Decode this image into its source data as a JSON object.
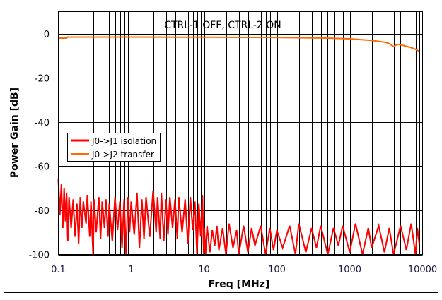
{
  "chart_data": {
    "type": "line",
    "title": "CTRL-1 OFF, CTRL-2 ON",
    "xlabel": "Freq [MHz]",
    "ylabel": "Power Gain [dB]",
    "xscale": "log",
    "xlim": [
      0.1,
      10000
    ],
    "ylim": [
      -100,
      10
    ],
    "xticks": [
      "0.1",
      "1",
      "10",
      "100",
      "1000",
      "10000"
    ],
    "xtick_values": [
      0.1,
      1,
      10,
      100,
      1000,
      10000
    ],
    "yticks": [
      "0",
      "-20",
      "-40",
      "-60",
      "-80",
      "-100"
    ],
    "ytick_values": [
      0,
      -20,
      -40,
      -60,
      -80,
      -100
    ],
    "grid": true,
    "legend_position": "center-left",
    "series": [
      {
        "name": "J0->J1 isolation",
        "color": "#ff0000",
        "x": [
          0.1,
          0.105,
          0.11,
          0.115,
          0.12,
          0.125,
          0.13,
          0.135,
          0.14,
          0.15,
          0.16,
          0.17,
          0.18,
          0.19,
          0.2,
          0.21,
          0.22,
          0.24,
          0.25,
          0.27,
          0.28,
          0.3,
          0.31,
          0.33,
          0.36,
          0.38,
          0.4,
          0.43,
          0.45,
          0.48,
          0.5,
          0.55,
          0.6,
          0.65,
          0.7,
          0.75,
          0.8,
          0.85,
          0.9,
          0.95,
          1,
          1.1,
          1.2,
          1.3,
          1.4,
          1.5,
          1.6,
          1.8,
          2,
          2.2,
          2.3,
          2.5,
          2.6,
          2.8,
          3,
          3.2,
          3.4,
          3.7,
          4,
          4.3,
          4.5,
          5,
          5.5,
          6,
          6.5,
          7,
          7.5,
          8,
          8.5,
          9,
          9.5,
          9.9,
          10.1,
          10.5,
          11,
          12,
          13,
          14,
          15,
          16,
          18,
          20,
          22,
          25,
          28,
          30,
          35,
          40,
          45,
          50,
          60,
          70,
          80,
          90,
          100,
          120,
          150,
          180,
          200,
          250,
          300,
          350,
          400,
          500,
          600,
          700,
          800,
          1000,
          1200,
          1500,
          1800,
          2000,
          2500,
          3000,
          3500,
          4000,
          5000,
          6000,
          7000,
          8000,
          8500,
          9000
        ],
        "y": [
          -66,
          -82,
          -68,
          -88,
          -70,
          -85,
          -72,
          -94,
          -74,
          -88,
          -75,
          -92,
          -77,
          -95,
          -74,
          -88,
          -76,
          -86,
          -73,
          -92,
          -76,
          -100,
          -75,
          -90,
          -74,
          -93,
          -76,
          -88,
          -75,
          -92,
          -77,
          -94,
          -74,
          -89,
          -76,
          -97,
          -75,
          -100,
          -74,
          -90,
          -76,
          -91,
          -72,
          -97,
          -75,
          -93,
          -74,
          -92,
          -71,
          -90,
          -74,
          -93,
          -72,
          -94,
          -75,
          -91,
          -74,
          -88,
          -75,
          -93,
          -74,
          -90,
          -75,
          -95,
          -74,
          -89,
          -76,
          -100,
          -77,
          -92,
          -73,
          -100,
          -88,
          -100,
          -87,
          -99,
          -89,
          -96,
          -87,
          -98,
          -88,
          -100,
          -86,
          -97,
          -89,
          -100,
          -87,
          -99,
          -88,
          -96,
          -87,
          -100,
          -88,
          -98,
          -89,
          -97,
          -87,
          -100,
          -86,
          -99,
          -88,
          -97,
          -87,
          -100,
          -88,
          -96,
          -87,
          -99,
          -86,
          -100,
          -88,
          -97,
          -87,
          -99,
          -88,
          -100,
          -87,
          -98,
          -86,
          -100,
          -88,
          -95
        ]
      },
      {
        "name": "J0->J2 transfer",
        "color": "#ff6a00",
        "x": [
          0.1,
          0.13,
          0.135,
          1,
          10,
          100,
          500,
          1000,
          2000,
          3000,
          3500,
          4000,
          4500,
          5000,
          6000,
          7000,
          8000,
          9000
        ],
        "y": [
          -2,
          -2,
          -1.5,
          -1.5,
          -1.6,
          -1.7,
          -2,
          -2.3,
          -3,
          -3.8,
          -4.5,
          -5.8,
          -4.8,
          -5,
          -5.7,
          -6.3,
          -7,
          -8
        ]
      }
    ]
  }
}
